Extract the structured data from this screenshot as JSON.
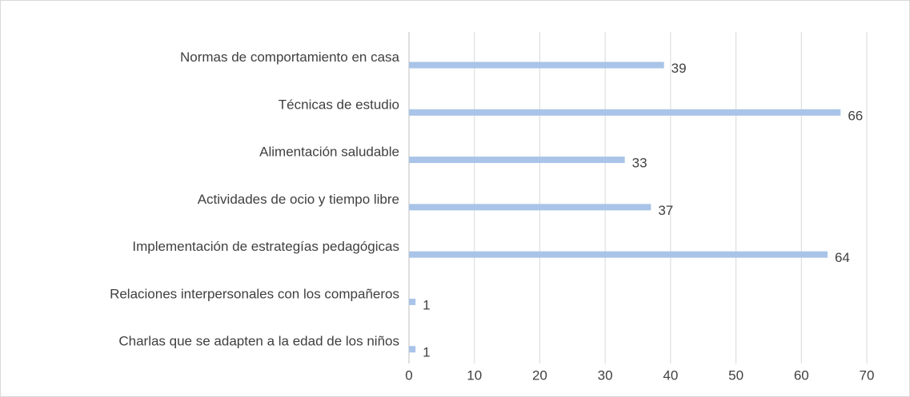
{
  "chart_data": {
    "type": "hbar",
    "categories": [
      "Normas de comportamiento en casa",
      "Técnicas de estudio",
      "Alimentación saludable",
      "Actividades de ocio y tiempo libre",
      "Implementación de estrategías pedagógicas",
      "Relaciones interpersonales con los compañeros",
      "Charlas que se adapten a la edad de los niños"
    ],
    "values": [
      39,
      66,
      33,
      37,
      64,
      1,
      1
    ],
    "color": "#a9c4e8",
    "xlim": [
      0,
      70
    ],
    "xticks": [
      0,
      10,
      20,
      30,
      40,
      50,
      60,
      70
    ],
    "grid": true
  }
}
